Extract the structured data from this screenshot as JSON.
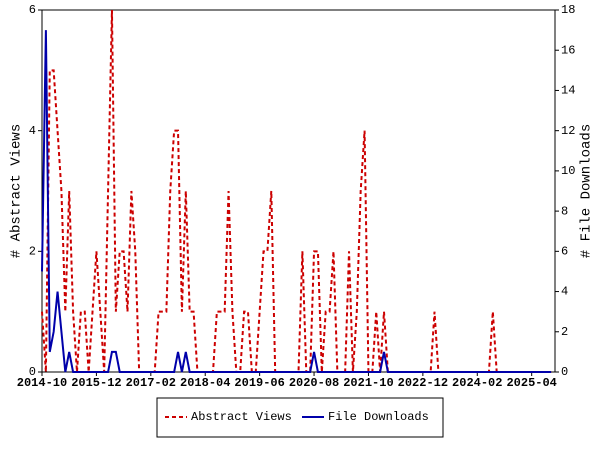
{
  "chart_data": {
    "type": "line",
    "x": [
      "2014-10",
      "2014-11",
      "2014-12",
      "2015-01",
      "2015-02",
      "2015-03",
      "2015-04",
      "2015-05",
      "2015-06",
      "2015-07",
      "2015-08",
      "2015-09",
      "2015-10",
      "2015-11",
      "2015-12",
      "2016-01",
      "2016-02",
      "2016-03",
      "2016-04",
      "2016-05",
      "2016-06",
      "2016-07",
      "2016-08",
      "2016-09",
      "2016-10",
      "2016-11",
      "2016-12",
      "2017-01",
      "2017-02",
      "2017-03",
      "2017-04",
      "2017-05",
      "2017-06",
      "2017-07",
      "2017-08",
      "2017-09",
      "2017-10",
      "2017-11",
      "2017-12",
      "2018-01",
      "2018-02",
      "2018-03",
      "2018-04",
      "2018-05",
      "2018-06",
      "2018-07",
      "2018-08",
      "2018-09",
      "2018-10",
      "2018-11",
      "2018-12",
      "2019-01",
      "2019-02",
      "2019-03",
      "2019-04",
      "2019-05",
      "2019-06",
      "2019-07",
      "2019-08",
      "2019-09",
      "2019-10",
      "2019-11",
      "2019-12",
      "2020-01",
      "2020-02",
      "2020-03",
      "2020-04",
      "2020-05",
      "2020-06",
      "2020-07",
      "2020-08",
      "2020-09",
      "2020-10",
      "2020-11",
      "2020-12",
      "2021-01",
      "2021-02",
      "2021-03",
      "2021-04",
      "2021-05",
      "2021-06",
      "2021-07",
      "2021-08",
      "2021-09",
      "2021-10",
      "2021-11",
      "2021-12",
      "2022-01",
      "2022-02",
      "2022-03",
      "2022-04",
      "2022-05",
      "2022-06",
      "2022-07",
      "2022-08",
      "2022-09",
      "2022-10",
      "2022-11",
      "2022-12",
      "2023-01",
      "2023-02",
      "2023-03",
      "2023-04",
      "2023-05",
      "2023-06",
      "2023-07",
      "2023-08",
      "2023-09",
      "2023-10",
      "2023-11",
      "2023-12",
      "2024-01",
      "2024-02",
      "2024-03",
      "2024-04",
      "2024-05",
      "2024-06",
      "2024-07",
      "2024-08",
      "2024-09",
      "2024-10",
      "2024-11",
      "2024-12",
      "2025-01",
      "2025-02",
      "2025-03",
      "2025-04",
      "2025-05",
      "2025-06",
      "2025-07",
      "2025-08",
      "2025-09"
    ],
    "series": [
      {
        "name": "Abstract Views",
        "color": "#cc0000",
        "dashed": true,
        "values": [
          1,
          0,
          5,
          5,
          4,
          3,
          1,
          3,
          1,
          0,
          1,
          1,
          0,
          1,
          2,
          1,
          0,
          3,
          6,
          1,
          2,
          2,
          1,
          3,
          2,
          0,
          0,
          0,
          0,
          0,
          1,
          1,
          1,
          3,
          4,
          4,
          1,
          3,
          1,
          1,
          0,
          0,
          0,
          0,
          0,
          1,
          1,
          1,
          3,
          1,
          0,
          0,
          1,
          1,
          0,
          0,
          1,
          2,
          2,
          3,
          0,
          0,
          0,
          0,
          0,
          0,
          0,
          2,
          0,
          0,
          2,
          2,
          0,
          1,
          1,
          2,
          0,
          0,
          0,
          2,
          0,
          1,
          3,
          4,
          0,
          0,
          1,
          0,
          1,
          0,
          0,
          0,
          0,
          0,
          0,
          0,
          0,
          0,
          0,
          0,
          0,
          1,
          0,
          0,
          0,
          0,
          0,
          0,
          0,
          0,
          0,
          0,
          0,
          0,
          0,
          0,
          1,
          0,
          0,
          0,
          0,
          0,
          0,
          0,
          0,
          0,
          0,
          0,
          0,
          0,
          0,
          0
        ]
      },
      {
        "name": "File Downloads",
        "color": "#0000aa",
        "dashed": false,
        "axis": "y2",
        "values": [
          5,
          17,
          1,
          2,
          4,
          2,
          0,
          1,
          0,
          0,
          0,
          0,
          0,
          0,
          0,
          0,
          0,
          0,
          1,
          1,
          0,
          0,
          0,
          0,
          0,
          0,
          0,
          0,
          0,
          0,
          0,
          0,
          0,
          0,
          0,
          1,
          0,
          1,
          0,
          0,
          0,
          0,
          0,
          0,
          0,
          0,
          0,
          0,
          0,
          0,
          0,
          0,
          0,
          0,
          0,
          0,
          0,
          0,
          0,
          0,
          0,
          0,
          0,
          0,
          0,
          0,
          0,
          0,
          0,
          0,
          1,
          0,
          0,
          0,
          0,
          0,
          0,
          0,
          0,
          0,
          0,
          0,
          0,
          0,
          0,
          0,
          0,
          0,
          1,
          0,
          0,
          0,
          0,
          0,
          0,
          0,
          0,
          0,
          0,
          0,
          0,
          0,
          0,
          0,
          0,
          0,
          0,
          0,
          0,
          0,
          0,
          0,
          0,
          0,
          0,
          0,
          0,
          0,
          0,
          0,
          0,
          0,
          0,
          0,
          0,
          0,
          0,
          0,
          0,
          0,
          0,
          0
        ]
      }
    ],
    "xlim": [
      "2014-10",
      "2025-10"
    ],
    "xticks": [
      "2014-10",
      "2015-12",
      "2017-02",
      "2018-04",
      "2019-06",
      "2020-08",
      "2021-10",
      "2022-12",
      "2024-02",
      "2025-04"
    ],
    "ylabel": "# Abstract Views",
    "ylim": [
      0,
      6
    ],
    "yticks": [
      0,
      2,
      4,
      6
    ],
    "y2label": "# File Downloads",
    "y2lim": [
      0,
      18
    ],
    "y2ticks": [
      0,
      2,
      4,
      6,
      8,
      10,
      12,
      14,
      16,
      18
    ],
    "legend": "bottom"
  }
}
